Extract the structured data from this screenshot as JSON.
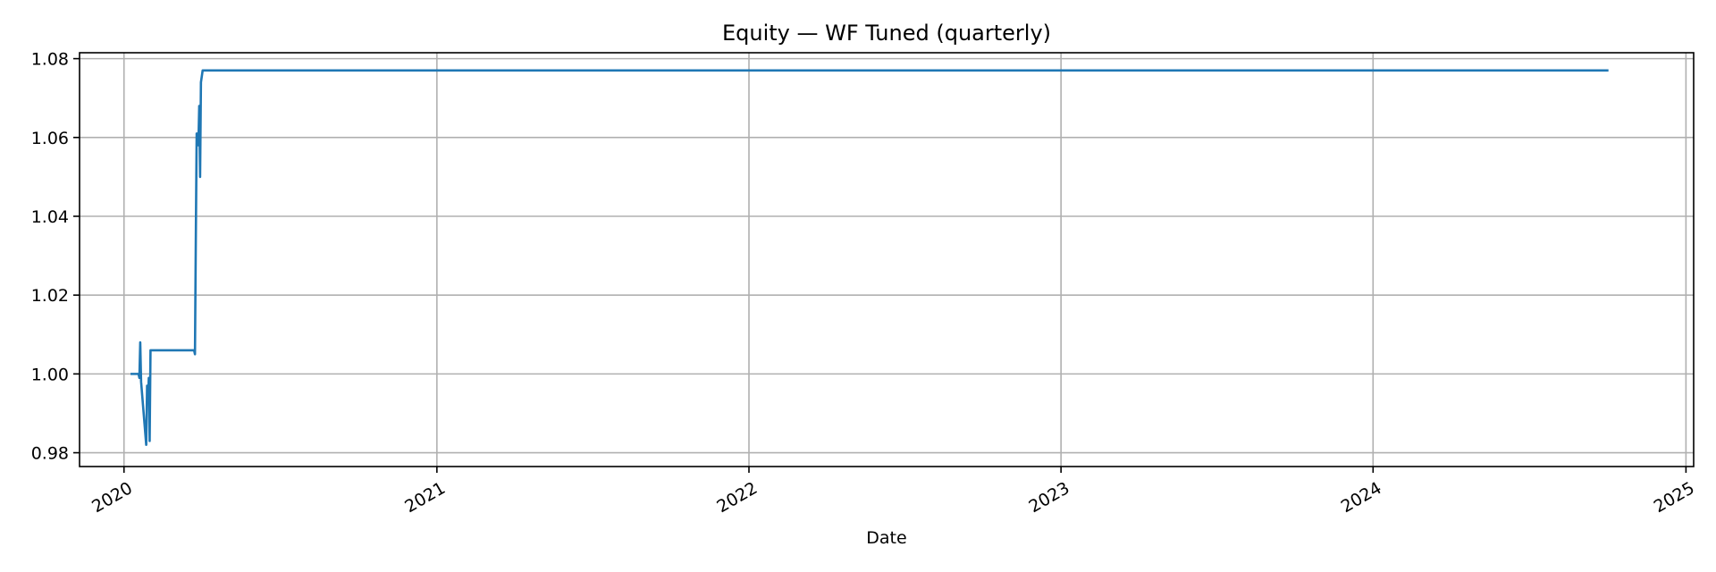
{
  "chart_data": {
    "type": "line",
    "title": "Equity — WF Tuned (quarterly)",
    "xlabel": "Date",
    "ylabel": "",
    "x_axis_type": "date",
    "xlim": [
      "2019-11-10",
      "2025-01-10"
    ],
    "ylim": [
      0.9765,
      1.0815
    ],
    "grid": true,
    "x_ticks": [
      {
        "value": "2020-01-01",
        "label": "2020"
      },
      {
        "value": "2021-01-01",
        "label": "2021"
      },
      {
        "value": "2022-01-01",
        "label": "2022"
      },
      {
        "value": "2023-01-01",
        "label": "2023"
      },
      {
        "value": "2024-01-01",
        "label": "2024"
      },
      {
        "value": "2025-01-01",
        "label": "2025"
      }
    ],
    "y_ticks": [
      {
        "value": 0.98,
        "label": "0.98"
      },
      {
        "value": 1.0,
        "label": "1.00"
      },
      {
        "value": 1.02,
        "label": "1.02"
      },
      {
        "value": 1.04,
        "label": "1.04"
      },
      {
        "value": 1.06,
        "label": "1.06"
      },
      {
        "value": 1.08,
        "label": "1.08"
      }
    ],
    "series": [
      {
        "color": "#1f77b4",
        "points": [
          {
            "x": "2020-01-10",
            "y": 1.0
          },
          {
            "x": "2020-01-18",
            "y": 1.0
          },
          {
            "x": "2020-01-19",
            "y": 0.999
          },
          {
            "x": "2020-01-20",
            "y": 1.008
          },
          {
            "x": "2020-01-21",
            "y": 0.998
          },
          {
            "x": "2020-01-27",
            "y": 0.982
          },
          {
            "x": "2020-01-28",
            "y": 0.997
          },
          {
            "x": "2020-01-29",
            "y": 0.993
          },
          {
            "x": "2020-01-30",
            "y": 0.999
          },
          {
            "x": "2020-01-31",
            "y": 0.983
          },
          {
            "x": "2020-02-01",
            "y": 1.006
          },
          {
            "x": "2020-03-23",
            "y": 1.006
          },
          {
            "x": "2020-03-24",
            "y": 1.005
          },
          {
            "x": "2020-03-25",
            "y": 1.034
          },
          {
            "x": "2020-03-26",
            "y": 1.061
          },
          {
            "x": "2020-03-27",
            "y": 1.061
          },
          {
            "x": "2020-03-28",
            "y": 1.058
          },
          {
            "x": "2020-03-29",
            "y": 1.068
          },
          {
            "x": "2020-03-30",
            "y": 1.05
          },
          {
            "x": "2020-03-31",
            "y": 1.074
          },
          {
            "x": "2020-04-02",
            "y": 1.077
          },
          {
            "x": "2024-10-01",
            "y": 1.077
          }
        ]
      }
    ]
  }
}
